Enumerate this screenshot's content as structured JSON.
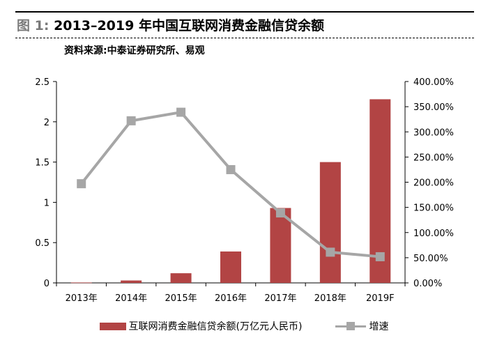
{
  "figure": {
    "label": "图 1:",
    "title": "2013–2019 年中国互联网消费金融信贷余额",
    "source": "资料来源:中泰证券研究所、易观"
  },
  "chart_data": {
    "type": "bar",
    "categories": [
      "2013年",
      "2014年",
      "2015年",
      "2016年",
      "2017年",
      "2018年",
      "2019F"
    ],
    "series": [
      {
        "name": "互联网消费金融信贷余额(万亿元人民币)",
        "type": "bar",
        "axis": "left",
        "color": "#b24444",
        "values": [
          0.005,
          0.03,
          0.12,
          0.39,
          0.93,
          1.5,
          2.28
        ]
      },
      {
        "name": "增速",
        "type": "line",
        "axis": "right",
        "color": "#a6a6a6",
        "marker": "square",
        "values": [
          197,
          322,
          339,
          225,
          139,
          61,
          52
        ]
      }
    ],
    "y_left": {
      "ylim": [
        0,
        2.5
      ],
      "ticks": [
        0,
        0.5,
        1,
        1.5,
        2,
        2.5
      ],
      "tick_labels": [
        "0",
        "0.5",
        "1",
        "1.5",
        "2",
        "2.5"
      ]
    },
    "y_right": {
      "ylim": [
        0,
        400
      ],
      "ticks": [
        0,
        50,
        100,
        150,
        200,
        250,
        300,
        350,
        400
      ],
      "tick_labels": [
        "0.00%",
        "50.00%",
        "100.00%",
        "150.00%",
        "200.00%",
        "250.00%",
        "300.00%",
        "350.00%",
        "400.00%"
      ]
    },
    "grid": false,
    "legend_position": "bottom"
  }
}
